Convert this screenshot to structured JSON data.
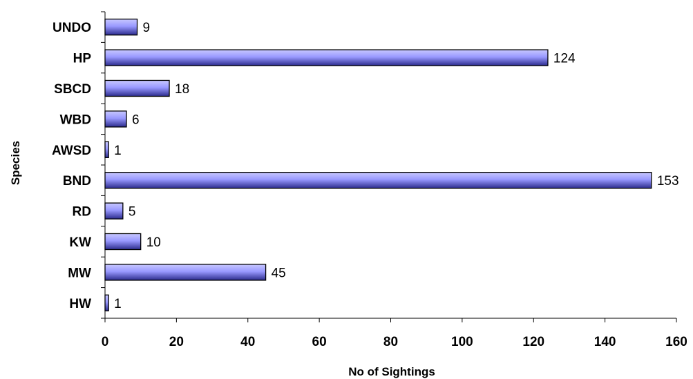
{
  "chart_data": {
    "type": "bar",
    "orientation": "horizontal",
    "categories": [
      "UNDO",
      "HP",
      "SBCD",
      "WBD",
      "AWSD",
      "BND",
      "RD",
      "KW",
      "MW",
      "HW"
    ],
    "values": [
      9,
      124,
      18,
      6,
      1,
      153,
      5,
      10,
      45,
      1
    ],
    "data_labels": [
      "9",
      "124",
      "18",
      "6",
      "1",
      "153",
      "5",
      "10",
      "45",
      "1"
    ],
    "xlabel": "No of Sightings",
    "ylabel": "Species",
    "xlim": [
      0,
      160
    ],
    "x_ticks": [
      0,
      20,
      40,
      60,
      80,
      100,
      120,
      140,
      160
    ],
    "x_tick_labels": [
      "0",
      "20",
      "40",
      "60",
      "80",
      "100",
      "120",
      "140",
      "160"
    ],
    "grid": false,
    "legend": "none",
    "bar_color": "#9999ff",
    "bar_gradient_dark": "#2b2b8c",
    "bar_outline": "#000000"
  }
}
